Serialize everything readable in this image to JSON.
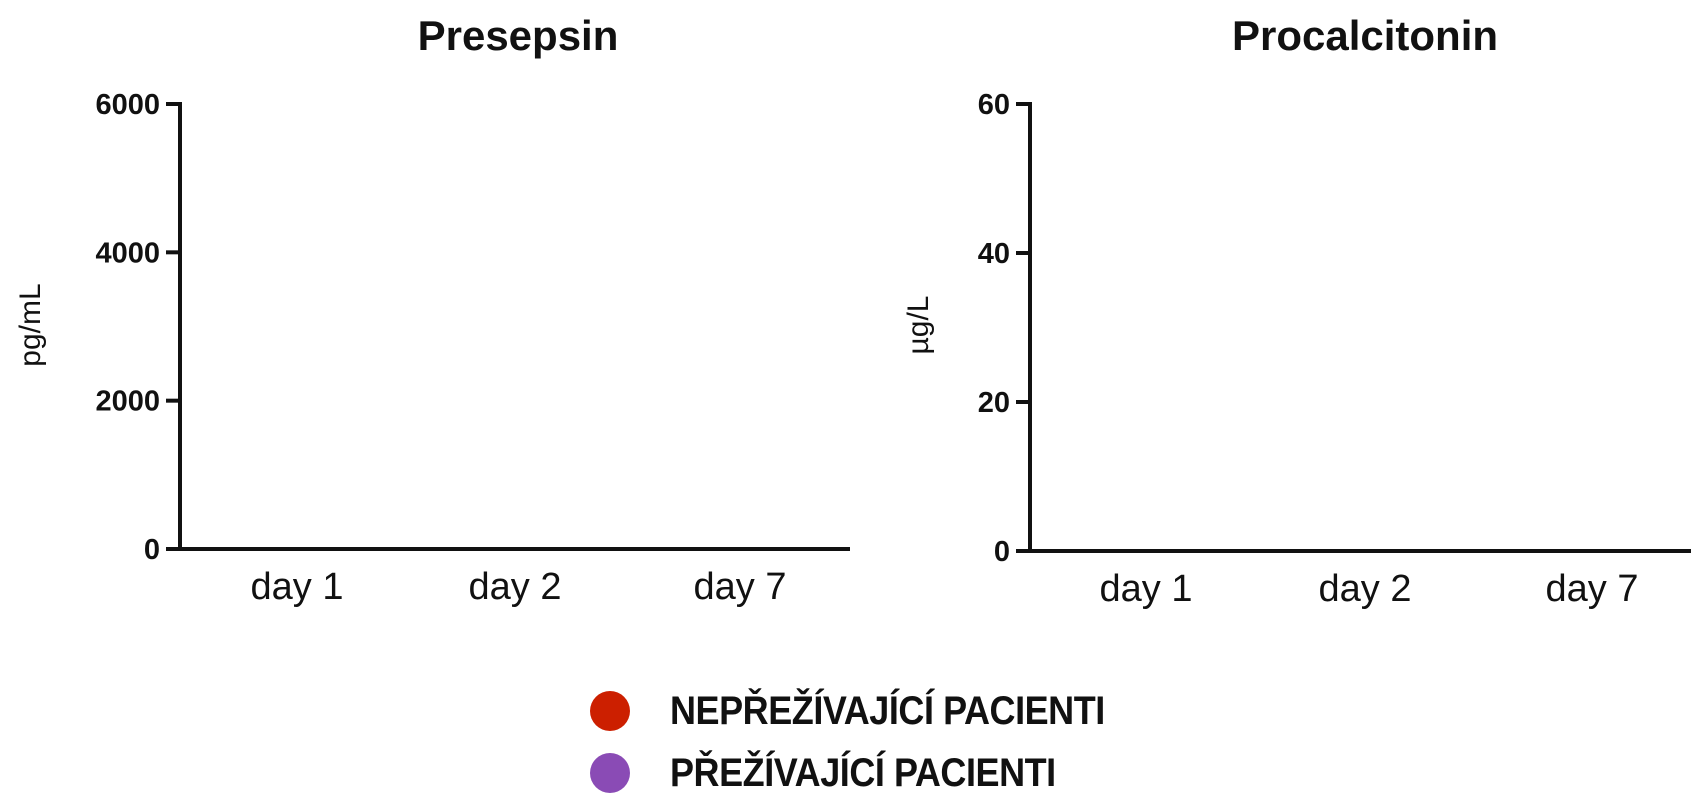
{
  "chart_data": [
    {
      "type": "scatter",
      "title": "Presepsin",
      "ylabel": "pg/mL",
      "xlabel": "",
      "categories": [
        "day 1",
        "day 2",
        "day 7"
      ],
      "yticks": [
        "0",
        "2000",
        "4000",
        "6000"
      ],
      "ytick_values": [
        0,
        2000,
        4000,
        6000
      ],
      "ylim": [
        0,
        6000
      ],
      "series": [],
      "grid": false
    },
    {
      "type": "scatter",
      "title": "Procalcitonin",
      "ylabel": "µg/L",
      "xlabel": "",
      "categories": [
        "day 1",
        "day 2",
        "day 7"
      ],
      "yticks": [
        "0",
        "20",
        "40",
        "60"
      ],
      "ytick_values": [
        0,
        20,
        40,
        60
      ],
      "ylim": [
        0,
        60
      ],
      "series": [],
      "grid": false
    }
  ],
  "legend": [
    {
      "label": "NEPŘEŽÍVAJÍCÍ PACIENTI",
      "color": "#cc1f00"
    },
    {
      "label": "PŘEŽÍVAJÍCÍ PACIENTI",
      "color": "#8a4bb5"
    }
  ]
}
